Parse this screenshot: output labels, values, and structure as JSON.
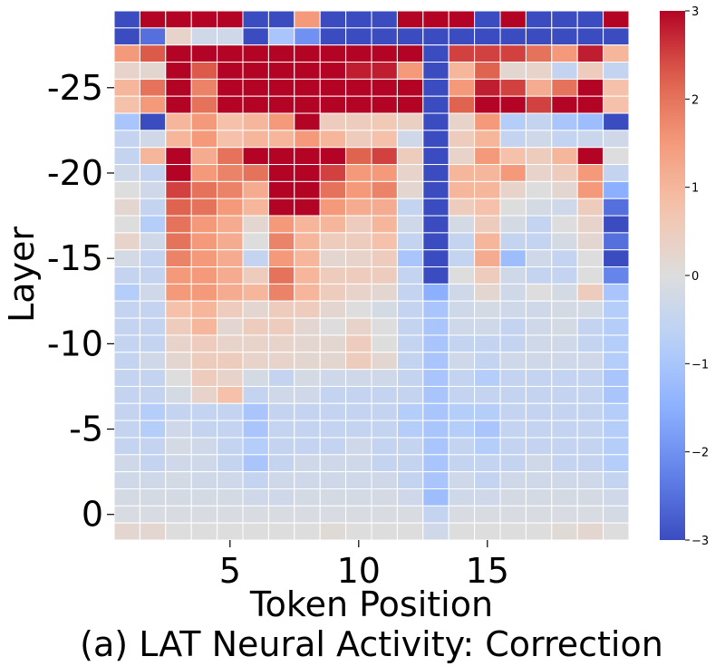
{
  "chart_data": {
    "type": "heatmap",
    "title": "(a) LAT Neural Activity: Correction",
    "xlabel": "Token Position",
    "ylabel": "Layer",
    "x": [
      1,
      2,
      3,
      4,
      5,
      6,
      7,
      8,
      9,
      10,
      11,
      12,
      13,
      14,
      15,
      16,
      17,
      18,
      19,
      20
    ],
    "y": [
      -29,
      -28,
      -27,
      -26,
      -25,
      -24,
      -23,
      -22,
      -21,
      -20,
      -19,
      -18,
      -17,
      -16,
      -15,
      -14,
      -13,
      -12,
      -11,
      -10,
      -9,
      -8,
      -7,
      -6,
      -5,
      -4,
      -3,
      -2,
      -1,
      0,
      1
    ],
    "xticks": [
      5,
      10,
      15
    ],
    "xtick_labels": [
      "5",
      "10",
      "15"
    ],
    "yticks": [
      -25,
      -20,
      -15,
      -10,
      -5,
      0
    ],
    "ytick_labels": [
      "-25",
      "-20",
      "-15",
      "-10",
      "-5",
      "0"
    ],
    "colorbar": {
      "colormap": "coolwarm",
      "vmin": -3,
      "vmax": 3,
      "ticks": [
        3,
        2,
        1,
        0,
        -1,
        -2,
        -3
      ],
      "tick_labels": [
        "3",
        "2",
        "1",
        "0",
        "−1",
        "−2",
        "−3"
      ]
    },
    "values": [
      [
        -3,
        3,
        3,
        3,
        3,
        -3,
        -3,
        1.5,
        -3,
        -3,
        -3,
        3,
        3,
        3,
        -3,
        3,
        -3,
        -3,
        -3,
        3
      ],
      [
        -3,
        -2.5,
        0.3,
        -0.3,
        -0.3,
        -3,
        -1,
        -2,
        -3,
        -3,
        -3,
        -3,
        -3,
        -3,
        -3,
        -3,
        -3,
        -3,
        -3,
        -3
      ],
      [
        1.5,
        2.3,
        3,
        3,
        3,
        3,
        3,
        3,
        3,
        3,
        3,
        3,
        -3,
        2.5,
        2.5,
        2.5,
        2,
        1.5,
        2.8,
        1
      ],
      [
        0.3,
        0.2,
        3,
        2.3,
        3,
        3,
        3,
        3,
        3,
        2.8,
        2.8,
        1.5,
        -3,
        1,
        2.2,
        0.2,
        0.3,
        -0.5,
        0.5,
        -0.5
      ],
      [
        1,
        2,
        3,
        1.8,
        3,
        3,
        3,
        3,
        3,
        3,
        3,
        3,
        -3,
        1.5,
        2.8,
        2.5,
        1.2,
        2,
        3,
        0.8
      ],
      [
        0.8,
        1.5,
        3,
        2,
        3,
        3,
        3,
        3,
        3,
        3,
        3,
        3,
        -3,
        2.2,
        3,
        3,
        2.5,
        3,
        3,
        0.8
      ],
      [
        -1,
        -3,
        1,
        1.5,
        0.8,
        1,
        1.5,
        3,
        0.5,
        0.5,
        0.6,
        0.4,
        -3,
        0.3,
        1.5,
        -0.8,
        -0.5,
        -1,
        -1.2,
        -3
      ],
      [
        -0.5,
        -0.3,
        1,
        1.5,
        0.8,
        1,
        1,
        1.5,
        1,
        0.5,
        0.8,
        -0.3,
        -3,
        0.5,
        1,
        -0.5,
        -0.3,
        -0.5,
        -0.4,
        -0.3
      ],
      [
        -0.5,
        1,
        3,
        1.2,
        2,
        3,
        3,
        3,
        3,
        2.2,
        2.5,
        0.5,
        -3,
        0.3,
        1.5,
        0.8,
        0.5,
        1,
        3,
        0
      ],
      [
        -0.3,
        -0.5,
        3,
        1.5,
        1.8,
        2,
        3,
        3,
        2.5,
        1.5,
        1.5,
        0.3,
        -3,
        1,
        1,
        1.5,
        0.3,
        0.5,
        1.5,
        -0.5
      ],
      [
        0,
        -0.3,
        2.5,
        2,
        1.8,
        1.2,
        3,
        3,
        2,
        1.5,
        1.8,
        0.2,
        -3,
        1,
        1,
        0.3,
        0,
        0.2,
        1.5,
        -1.5
      ],
      [
        0.2,
        -0.5,
        2.2,
        2,
        1.5,
        1,
        3,
        3,
        1.5,
        1.2,
        1.2,
        -0.5,
        -3,
        0.5,
        0.8,
        0,
        -0.2,
        -0.3,
        0.5,
        -2.5
      ],
      [
        0,
        -0.8,
        2,
        1.5,
        1.2,
        0.2,
        1.5,
        1,
        1,
        0.5,
        1,
        -0.3,
        -3,
        -0.2,
        0.5,
        -0.2,
        -0.5,
        0,
        0.3,
        -3
      ],
      [
        0.3,
        -0.3,
        2,
        1.5,
        1.2,
        0,
        1.8,
        1,
        0.5,
        0.5,
        0.8,
        -0.5,
        -3,
        -0.5,
        1,
        -0.5,
        -0.5,
        -0.2,
        0.2,
        -2.5
      ],
      [
        -0.2,
        -0.5,
        1.8,
        1.5,
        1.2,
        -0.5,
        1.5,
        1,
        0.2,
        0.3,
        0.5,
        -1,
        -3,
        -0.5,
        1.2,
        -1.2,
        -0.3,
        -0.5,
        0,
        -3
      ],
      [
        -0.5,
        -0.5,
        1.5,
        1.5,
        1.2,
        0.5,
        2,
        1,
        0.5,
        0.5,
        0.5,
        -0.5,
        -3,
        0,
        0.5,
        -0.3,
        -0.5,
        -0.5,
        0,
        -2.2
      ],
      [
        -0.8,
        -0.3,
        1.5,
        1.5,
        1.2,
        1,
        1.8,
        1,
        0.5,
        0.3,
        0.2,
        -0.5,
        -1.5,
        -0.3,
        0.2,
        -0.3,
        0,
        -0.2,
        0.5,
        -1
      ],
      [
        -0.5,
        -0.5,
        0.8,
        1,
        0.5,
        0.2,
        0.5,
        0.5,
        0.2,
        0,
        -0.2,
        -0.5,
        -1,
        -0.3,
        -0.2,
        -0.3,
        -0.3,
        -0.2,
        -0.2,
        -0.8
      ],
      [
        -0.5,
        -0.5,
        0.5,
        1,
        0.2,
        0.5,
        0.5,
        0.2,
        0,
        0.3,
        0,
        -0.5,
        -1,
        -0.3,
        -0.3,
        -0.5,
        -0.3,
        -0.2,
        -0.5,
        -0.8
      ],
      [
        -0.5,
        -0.5,
        0.3,
        0.5,
        0.3,
        0.3,
        0.3,
        0.2,
        0.2,
        0.5,
        0,
        -0.5,
        -1,
        -0.5,
        -0.5,
        -0.5,
        -0.3,
        -0.3,
        -0.5,
        -0.8
      ],
      [
        -0.5,
        -0.3,
        0.2,
        0.5,
        0.5,
        0.3,
        0.3,
        0.2,
        0.2,
        0.5,
        0.2,
        -0.5,
        -1,
        -0.3,
        -0.5,
        -0.3,
        -0.3,
        -0.3,
        -0.3,
        -0.8
      ],
      [
        -0.5,
        -0.5,
        0,
        0.5,
        0.3,
        -0.2,
        -0.5,
        -0.2,
        -0.3,
        -0.3,
        -0.3,
        -0.5,
        -1,
        -0.5,
        -0.8,
        -0.5,
        -0.5,
        -0.5,
        -0.5,
        -1
      ],
      [
        -0.5,
        -0.5,
        -0.2,
        0.3,
        0.8,
        -0.5,
        -0.3,
        -0.3,
        -0.5,
        -0.5,
        -0.5,
        -0.5,
        -1,
        -0.5,
        -0.5,
        -0.5,
        -0.5,
        -0.5,
        -0.5,
        -1
      ],
      [
        -0.5,
        -0.8,
        -0.5,
        -0.5,
        -0.5,
        -1,
        -0.5,
        -0.5,
        -0.5,
        -0.5,
        -0.5,
        -0.8,
        -1,
        -0.8,
        -0.8,
        -0.5,
        -0.5,
        -0.5,
        -0.5,
        -0.8
      ],
      [
        -0.5,
        -0.8,
        -0.3,
        -0.5,
        -0.5,
        -1,
        -0.5,
        -0.5,
        -0.5,
        -0.5,
        -0.5,
        -0.8,
        -1,
        -0.8,
        -1,
        -0.5,
        -0.5,
        -0.5,
        -0.5,
        -0.8
      ],
      [
        -0.5,
        -0.5,
        -0.2,
        -0.3,
        -0.5,
        -0.8,
        -0.5,
        -0.5,
        -0.5,
        -0.3,
        -0.5,
        -0.5,
        -1,
        -0.5,
        -0.8,
        -0.5,
        -0.5,
        -0.5,
        -0.5,
        -0.8
      ],
      [
        -0.3,
        -0.5,
        -0.3,
        -0.3,
        -0.5,
        -1,
        -0.5,
        -0.3,
        -0.3,
        -0.3,
        -0.5,
        -0.5,
        -1,
        -0.5,
        -0.5,
        -0.5,
        -0.3,
        -0.5,
        -0.5,
        -0.8
      ],
      [
        -0.3,
        -0.3,
        -0.2,
        -0.3,
        -0.3,
        -0.5,
        -0.3,
        -0.3,
        -0.3,
        -0.3,
        -0.3,
        -0.5,
        -1,
        -0.3,
        -0.5,
        -0.3,
        -0.3,
        -0.3,
        -0.3,
        -0.5
      ],
      [
        -0.2,
        -0.2,
        -0.2,
        -0.2,
        -0.2,
        -0.3,
        -0.3,
        -0.2,
        -0.2,
        -0.2,
        -0.2,
        -0.3,
        -1.2,
        -0.3,
        -0.3,
        -0.2,
        -0.2,
        -0.2,
        -0.2,
        -0.3
      ],
      [
        -0.1,
        -0.1,
        -0.1,
        -0.1,
        -0.1,
        -0.1,
        -0.1,
        -0.1,
        -0.1,
        -0.1,
        -0.1,
        -0.1,
        -0.5,
        -0.1,
        -0.1,
        -0.1,
        -0.1,
        -0.1,
        -0.1,
        -0.2
      ],
      [
        0.2,
        0.2,
        0,
        0,
        0,
        0,
        0,
        0,
        0.1,
        0,
        0,
        0,
        -0.3,
        0,
        0,
        0,
        0,
        0.1,
        0.2,
        0
      ]
    ]
  }
}
